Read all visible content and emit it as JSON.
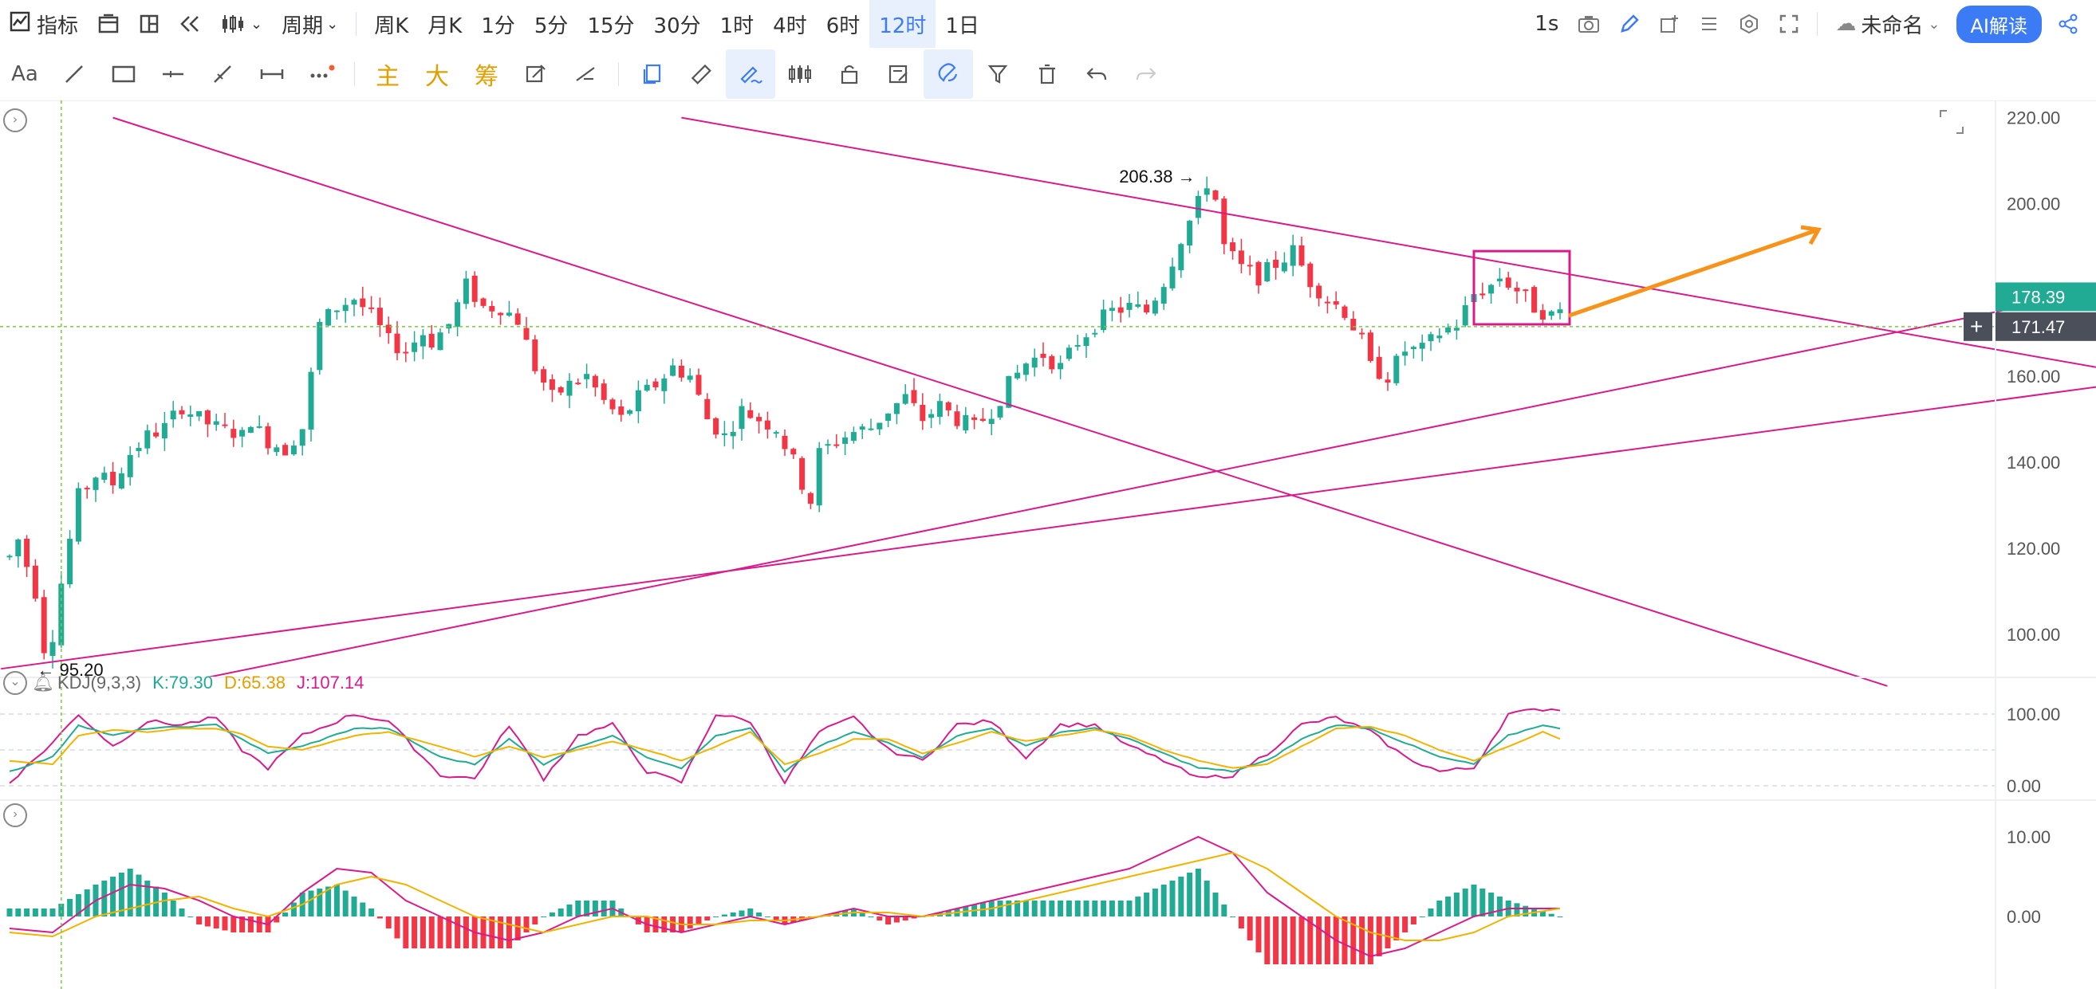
{
  "toolbar": {
    "indicators_label": "指标",
    "period_label": "周期",
    "periods": [
      "周K",
      "月K",
      "1分",
      "5分",
      "15分",
      "30分",
      "1时",
      "4时",
      "6时",
      "12时",
      "1日"
    ],
    "selected_period": "12时",
    "right": {
      "speed": "1s",
      "layout_name": "未命名",
      "ai_label": "AI解读"
    }
  },
  "drawing_toolbar": {
    "text_tool": "Aa",
    "main_label": "主",
    "big_label": "大",
    "chip_label": "筹"
  },
  "price_axis": {
    "ticks": [
      "220.00",
      "200.00",
      "180.00",
      "160.00",
      "140.00",
      "120.00",
      "100.00"
    ],
    "current_price": "178.39",
    "crosshair_price": "171.47"
  },
  "annotations": {
    "high": "206.38",
    "low": "95.20"
  },
  "kdj": {
    "name": "KDJ(9,3,3)",
    "k_label": "K:79.30",
    "d_label": "D:65.38",
    "j_label": "J:107.14",
    "ticks": [
      "100.00",
      "0.00"
    ]
  },
  "macd": {
    "ticks": [
      "10.00",
      "0.00"
    ]
  },
  "colors": {
    "up": "#22ab94",
    "down": "#f23645",
    "trend": "#d81b8c",
    "kdj_k": "#22ab94",
    "kdj_d": "#f0b400",
    "kdj_j": "#d81b8c",
    "accent": "#3c7bf6",
    "arrow": "#f7931a",
    "crosshair": "#7ac943"
  },
  "chart_data": {
    "type": "candlestick",
    "timeframe": "12时",
    "ylim": [
      90,
      224
    ],
    "price_path": [
      [
        0,
        118
      ],
      [
        1,
        122
      ],
      [
        3,
        110
      ],
      [
        4,
        97
      ],
      [
        5,
        100
      ],
      [
        6,
        112
      ],
      [
        8,
        132
      ],
      [
        10,
        137
      ],
      [
        12,
        135
      ],
      [
        14,
        142
      ],
      [
        16,
        146
      ],
      [
        18,
        148
      ],
      [
        20,
        153
      ],
      [
        22,
        150
      ],
      [
        24,
        148
      ],
      [
        26,
        147
      ],
      [
        27,
        146
      ],
      [
        28,
        150
      ],
      [
        29,
        147
      ],
      [
        30,
        145
      ],
      [
        31,
        144
      ],
      [
        32,
        143
      ],
      [
        34,
        148
      ],
      [
        36,
        172
      ],
      [
        38,
        176
      ],
      [
        40,
        178
      ],
      [
        42,
        174
      ],
      [
        44,
        168
      ],
      [
        46,
        166
      ],
      [
        48,
        170
      ],
      [
        49,
        168
      ],
      [
        51,
        172
      ],
      [
        53,
        181
      ],
      [
        55,
        176
      ],
      [
        57,
        176
      ],
      [
        59,
        173
      ],
      [
        61,
        162
      ],
      [
        63,
        155
      ],
      [
        65,
        158
      ],
      [
        67,
        160
      ],
      [
        69,
        154
      ],
      [
        71,
        150
      ],
      [
        73,
        155
      ],
      [
        75,
        158
      ],
      [
        77,
        162
      ],
      [
        79,
        160
      ],
      [
        81,
        150
      ],
      [
        83,
        146
      ],
      [
        85,
        152
      ],
      [
        87,
        150
      ],
      [
        89,
        148
      ],
      [
        91,
        140
      ],
      [
        92,
        135
      ],
      [
        93,
        131
      ],
      [
        94,
        142
      ],
      [
        96,
        145
      ],
      [
        98,
        147
      ],
      [
        100,
        148
      ],
      [
        102,
        152
      ],
      [
        104,
        155
      ],
      [
        106,
        150
      ],
      [
        108,
        153
      ],
      [
        110,
        150
      ],
      [
        112,
        148
      ],
      [
        114,
        152
      ],
      [
        116,
        158
      ],
      [
        118,
        163
      ],
      [
        120,
        165
      ],
      [
        122,
        162
      ],
      [
        124,
        168
      ],
      [
        126,
        172
      ],
      [
        128,
        175
      ],
      [
        130,
        176
      ],
      [
        132,
        175
      ],
      [
        134,
        182
      ],
      [
        136,
        192
      ],
      [
        138,
        200
      ],
      [
        139,
        205
      ],
      [
        140,
        201
      ],
      [
        141,
        190
      ],
      [
        143,
        185
      ],
      [
        145,
        183
      ],
      [
        147,
        186
      ],
      [
        149,
        189
      ],
      [
        151,
        182
      ],
      [
        153,
        178
      ],
      [
        155,
        175
      ],
      [
        157,
        168
      ],
      [
        158,
        162
      ],
      [
        160,
        160
      ],
      [
        162,
        166
      ],
      [
        164,
        166
      ],
      [
        166,
        170
      ],
      [
        168,
        172
      ],
      [
        170,
        179
      ],
      [
        172,
        181
      ],
      [
        173,
        183
      ],
      [
        175,
        180
      ],
      [
        177,
        176
      ],
      [
        179,
        174
      ],
      [
        180,
        175
      ]
    ],
    "kdj_path": [
      [
        0,
        20,
        35,
        5
      ],
      [
        5,
        40,
        30,
        60
      ],
      [
        8,
        85,
        70,
        100
      ],
      [
        12,
        70,
        78,
        55
      ],
      [
        16,
        80,
        75,
        90
      ],
      [
        20,
        82,
        80,
        85
      ],
      [
        24,
        85,
        80,
        95
      ],
      [
        27,
        65,
        72,
        50
      ],
      [
        30,
        45,
        55,
        25
      ],
      [
        34,
        55,
        50,
        70
      ],
      [
        40,
        80,
        70,
        100
      ],
      [
        44,
        80,
        75,
        90
      ],
      [
        50,
        40,
        55,
        15
      ],
      [
        54,
        30,
        40,
        10
      ],
      [
        58,
        65,
        55,
        85
      ],
      [
        62,
        30,
        40,
        10
      ],
      [
        66,
        55,
        50,
        70
      ],
      [
        70,
        70,
        62,
        85
      ],
      [
        74,
        40,
        50,
        20
      ],
      [
        78,
        25,
        35,
        5
      ],
      [
        82,
        70,
        55,
        100
      ],
      [
        86,
        80,
        75,
        90
      ],
      [
        90,
        20,
        30,
        5
      ],
      [
        94,
        55,
        45,
        75
      ],
      [
        98,
        75,
        65,
        95
      ],
      [
        102,
        60,
        65,
        50
      ],
      [
        106,
        40,
        45,
        35
      ],
      [
        110,
        70,
        60,
        85
      ],
      [
        114,
        80,
        75,
        90
      ],
      [
        118,
        55,
        62,
        40
      ],
      [
        122,
        75,
        70,
        85
      ],
      [
        126,
        80,
        78,
        85
      ],
      [
        130,
        65,
        70,
        55
      ],
      [
        134,
        45,
        50,
        35
      ],
      [
        138,
        25,
        35,
        10
      ],
      [
        142,
        20,
        25,
        15
      ],
      [
        146,
        35,
        30,
        45
      ],
      [
        150,
        65,
        55,
        85
      ],
      [
        154,
        85,
        80,
        95
      ],
      [
        158,
        80,
        82,
        75
      ],
      [
        162,
        60,
        70,
        40
      ],
      [
        166,
        40,
        50,
        20
      ],
      [
        170,
        30,
        35,
        25
      ],
      [
        174,
        70,
        55,
        100
      ],
      [
        178,
        85,
        75,
        107
      ],
      [
        180,
        79,
        65,
        107
      ]
    ],
    "macd_path": [
      [
        0,
        -1.5,
        -2
      ],
      [
        5,
        -2,
        -2.5
      ],
      [
        10,
        2,
        0
      ],
      [
        14,
        4,
        1
      ],
      [
        18,
        3.5,
        2
      ],
      [
        22,
        2,
        2.5
      ],
      [
        26,
        0,
        1
      ],
      [
        30,
        -1,
        0
      ],
      [
        34,
        3,
        1.5
      ],
      [
        38,
        6,
        4
      ],
      [
        42,
        5.5,
        5
      ],
      [
        46,
        2,
        4
      ],
      [
        50,
        0,
        2
      ],
      [
        54,
        -2,
        0
      ],
      [
        58,
        -3,
        -1
      ],
      [
        62,
        -2,
        -2
      ],
      [
        66,
        0,
        -1
      ],
      [
        70,
        1,
        0
      ],
      [
        74,
        -1,
        0
      ],
      [
        78,
        -2,
        -1
      ],
      [
        82,
        -1,
        -1
      ],
      [
        86,
        0,
        -0.5
      ],
      [
        90,
        -1,
        -0.5
      ],
      [
        94,
        0,
        0
      ],
      [
        98,
        1,
        0.5
      ],
      [
        102,
        0,
        0.5
      ],
      [
        106,
        0,
        0
      ],
      [
        110,
        1,
        0.5
      ],
      [
        114,
        2,
        1
      ],
      [
        118,
        3,
        2
      ],
      [
        122,
        4,
        3
      ],
      [
        126,
        5,
        4
      ],
      [
        130,
        6,
        5
      ],
      [
        134,
        8,
        6
      ],
      [
        138,
        10,
        7
      ],
      [
        142,
        8,
        8
      ],
      [
        146,
        3,
        6
      ],
      [
        150,
        0,
        3
      ],
      [
        154,
        -3,
        0
      ],
      [
        158,
        -5,
        -2
      ],
      [
        162,
        -4,
        -3
      ],
      [
        166,
        -2,
        -3
      ],
      [
        170,
        0,
        -2
      ],
      [
        174,
        1,
        0
      ],
      [
        180,
        1,
        1
      ]
    ]
  }
}
